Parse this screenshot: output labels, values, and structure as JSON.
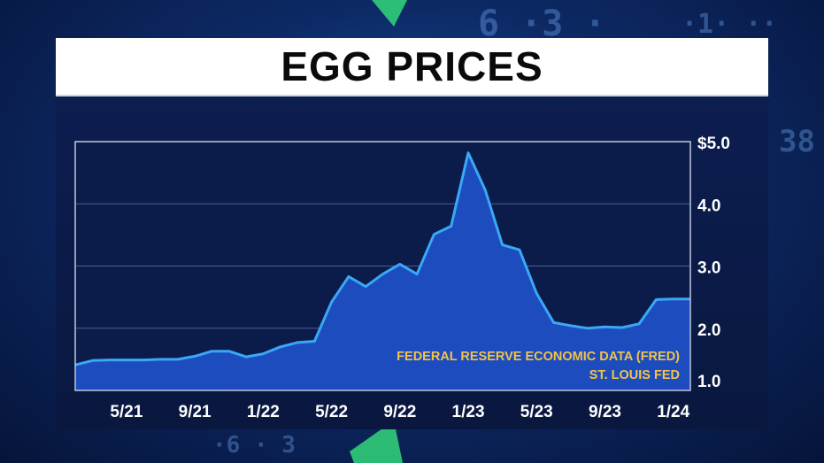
{
  "title": "EGG PRICES",
  "source_lines": [
    "FEDERAL RESERVE ECONOMIC DATA (FRED)",
    "ST. LOUIS FED"
  ],
  "colors": {
    "fill": "#1f4fc4",
    "line": "#39a8f5",
    "source_text": "#f2c34a",
    "axis_text": "#ffffff"
  },
  "chart_data": {
    "type": "area",
    "title": "EGG PRICES",
    "xlabel": "",
    "ylabel": "",
    "y_ticks": [
      {
        "value": 1.0,
        "label": "1.0"
      },
      {
        "value": 2.0,
        "label": "2.0"
      },
      {
        "value": 3.0,
        "label": "3.0"
      },
      {
        "value": 4.0,
        "label": "4.0"
      },
      {
        "value": 5.0,
        "label": "$5.0"
      }
    ],
    "x_ticks": [
      "5/21",
      "9/21",
      "1/22",
      "5/22",
      "9/22",
      "1/23",
      "5/23",
      "9/23",
      "1/24"
    ],
    "x": [
      "2/21",
      "3/21",
      "4/21",
      "5/21",
      "6/21",
      "7/21",
      "8/21",
      "9/21",
      "10/21",
      "11/21",
      "12/21",
      "1/22",
      "2/22",
      "3/22",
      "4/22",
      "5/22",
      "6/22",
      "7/22",
      "8/22",
      "9/22",
      "10/22",
      "11/22",
      "12/22",
      "1/23",
      "2/23",
      "3/23",
      "4/23",
      "5/23",
      "6/23",
      "7/23",
      "8/23",
      "9/23",
      "10/23",
      "11/23",
      "12/23",
      "1/24",
      "2/24"
    ],
    "values": [
      1.41,
      1.48,
      1.49,
      1.49,
      1.49,
      1.5,
      1.5,
      1.55,
      1.63,
      1.63,
      1.54,
      1.59,
      1.7,
      1.77,
      1.79,
      2.42,
      2.83,
      2.67,
      2.87,
      3.03,
      2.87,
      3.51,
      3.64,
      4.82,
      4.22,
      3.34,
      3.26,
      2.56,
      2.09,
      2.04,
      2.0,
      2.02,
      2.01,
      2.07,
      2.46,
      2.47,
      2.47
    ],
    "ylim": [
      1.0,
      5.0
    ],
    "grid": true,
    "annotations": [
      "FEDERAL RESERVE ECONOMIC DATA (FRED)",
      "ST. LOUIS FED"
    ]
  }
}
